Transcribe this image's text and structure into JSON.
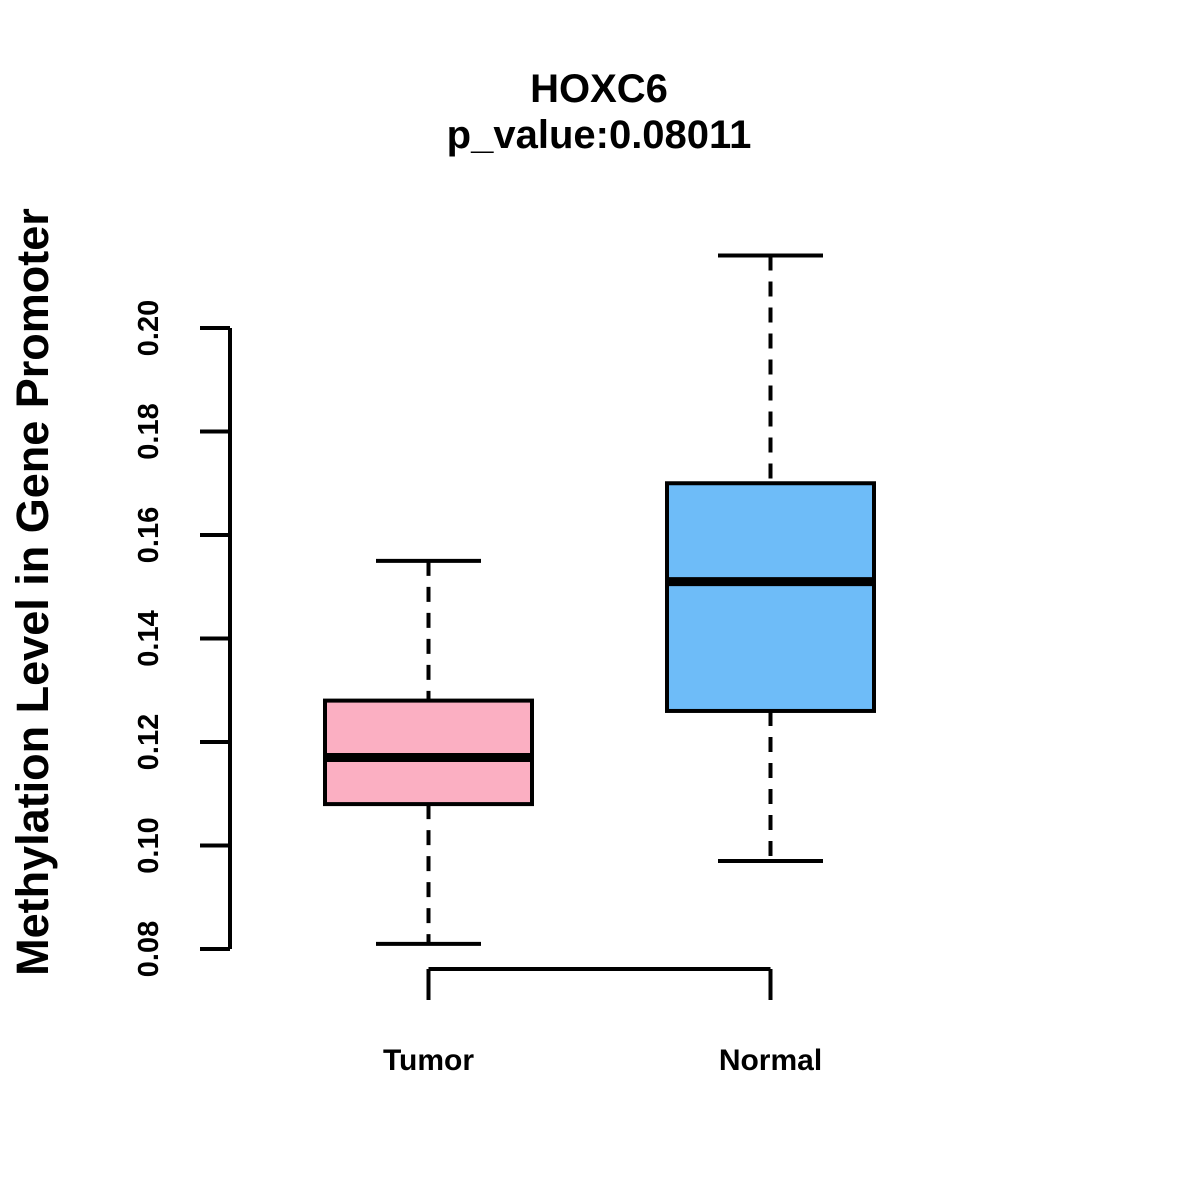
{
  "figure": {
    "title": "HOXC6",
    "subtitle": "p_value:0.08011",
    "y_axis_label": "Methylation Level in Gene Promoter"
  },
  "chart_data": {
    "type": "boxplot",
    "title": "HOXC6",
    "subtitle": "p_value:0.08011",
    "p_value": 0.08011,
    "gene": "HOXC6",
    "ylabel": "Methylation Level in Gene Promoter",
    "categories": [
      "Tumor",
      "Normal"
    ],
    "series": [
      {
        "name": "Tumor",
        "color": "#FBAFC2",
        "whisker_low": 0.081,
        "q1": 0.108,
        "median": 0.117,
        "q3": 0.128,
        "whisker_high": 0.155
      },
      {
        "name": "Normal",
        "color": "#6EBCF8",
        "whisker_low": 0.097,
        "q1": 0.126,
        "median": 0.151,
        "q3": 0.17,
        "whisker_high": 0.214
      }
    ],
    "ylim": [
      0.08,
      0.2
    ],
    "yticks": [
      0.08,
      0.1,
      0.12,
      0.14,
      0.16,
      0.18,
      0.2
    ],
    "ytick_labels": [
      "0.08",
      "0.10",
      "0.12",
      "0.14",
      "0.16",
      "0.18",
      "0.20"
    ],
    "grid": false,
    "legend": null,
    "line_color": "#000000"
  }
}
